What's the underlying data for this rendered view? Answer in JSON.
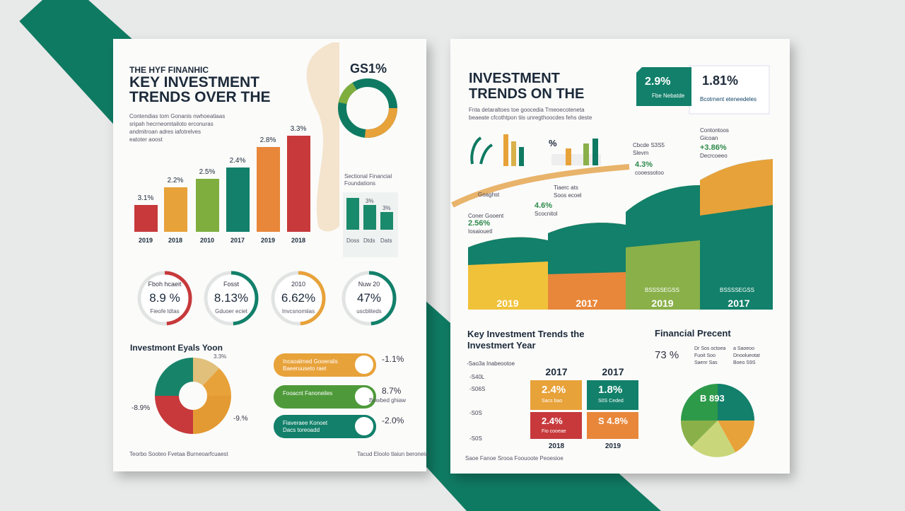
{
  "left_page": {
    "kicker": "THE HYF FINANHIC",
    "title_lines": [
      "KEY INVESTMENT",
      "TRENDS OVER THE"
    ],
    "intro_lines": [
      "Contendias tom Gonanis nwhoeatiaas",
      "sripah hecrneomtailoto erconuras",
      "andmitroan adres iafotrelves",
      "eatoter aoost"
    ],
    "bar_labels": [
      "3.1%",
      "2.2%",
      "2.5%",
      "2.4%",
      "2.8%",
      "3.3%"
    ],
    "bar_years": [
      "2019",
      "2018",
      "2010",
      "2017",
      "2019",
      "2018"
    ],
    "ring_label": "GS1%",
    "side_table": {
      "title_lines": [
        "Sectional Financial",
        "Foundations"
      ],
      "labels": [
        "3%",
        "3%"
      ],
      "footers": [
        "Doss",
        "Dtds",
        "Dats"
      ]
    },
    "gauges": [
      {
        "caption": "Fboh hcaeit",
        "value": "8.9 %",
        "sub": "Fieofe ldtas"
      },
      {
        "caption": "Fosst",
        "value": "8.13%",
        "sub": "Gduoer eciet"
      },
      {
        "caption": "2010",
        "value": "6.62%",
        "sub": "Invcsnomiias"
      },
      {
        "caption": "Nuw 20",
        "value": "47%",
        "sub": "uscbliteds"
      }
    ],
    "pie_title": "Investmont Eyals Yoon",
    "pie_labels": [
      "3.3%",
      "-8.9%",
      "-9.%"
    ],
    "banners": [
      {
        "lines": [
          "Incaoalmed Gooeralis",
          "Baeeruuseto raet"
        ],
        "value": "-1.1%"
      },
      {
        "lines": [
          "Fooacnt Fanoneiles"
        ],
        "value": "8.7%",
        "sub": "Bowbed ghiaw"
      },
      {
        "lines": [
          "Fiaveraee Konoet",
          "Dacs toreoadd"
        ],
        "value": "-2.0%"
      }
    ],
    "footer": [
      "Teorbo Sooteo Fvetaa  Burneoarfcuaest",
      "Tacud Eloolo tlaiun beroneiu"
    ]
  },
  "right_page": {
    "title_lines": [
      "INVESTMENT",
      "TRENDS ON THE"
    ],
    "card": {
      "left_value": "2.9%",
      "left_sub": "Fbe Nebatde",
      "right_value": "1.81%",
      "right_sub": "Bcotrnent eteneedeles"
    },
    "intro_lines": [
      "Fnta detaraltoes toe goocedia Tmeoecoteneta",
      "beaeate cfcothtpon tiis unregthoocdes fehs deste"
    ],
    "icon_label": "%",
    "notes": [
      {
        "lines": [
          "Cbcde S3S5",
          "Slevm"
        ],
        "value": ""
      },
      {
        "lines": [
          "Contontoos",
          "Gicoan"
        ]
      },
      {
        "lines": [
          "+3.86%",
          "Decrcoeeo"
        ]
      },
      {
        "lines": [
          "4.3%",
          "cooessotoo"
        ]
      },
      {
        "lines": [
          "Goaghst"
        ]
      },
      {
        "lines": [
          "Tiaerc ats",
          "Soos ecoel"
        ]
      },
      {
        "lines": [
          "4.6%",
          "Scocnitol"
        ]
      },
      {
        "lines": [
          "Coner Gooent",
          "2.56%",
          "Iosaiouetl"
        ]
      }
    ],
    "area_years": [
      "2019",
      "2017",
      "2019",
      "2017"
    ],
    "area_tags": [
      "BSSSSEGSS",
      "BSSSSEGSS"
    ],
    "key_title_lines": [
      "Key Investment Trends the",
      "Investmert Year"
    ],
    "stack_axis": [
      "-Sao3a Inabeootoe",
      "-S40L",
      "-S06S",
      "-S0S",
      "-S0S"
    ],
    "stack_cols": [
      {
        "year": "2017",
        "top": "2.4%",
        "top_sub": "Sacs bao",
        "bottom": "2.4%",
        "bottom_sub": "Fio cooeae",
        "footer": "2018"
      },
      {
        "year": "2017",
        "top": "1.8%",
        "top_sub": "S0S Ceded",
        "bottom": "S 4.8%",
        "bottom_sub": "",
        "footer": "2019"
      }
    ],
    "fin_title": "Financial Precent",
    "fin_value": "73 %",
    "fin_notes": [
      "Dr Sos octoea",
      "a Saoeoo",
      "Fuoit Soo",
      "Dnoolueotat",
      "Saenr Sas",
      "Boeo S9S"
    ],
    "pie_value": "B 893",
    "footer": "Saoe Fanoe Srooa Foouoote Peoesioe"
  }
}
